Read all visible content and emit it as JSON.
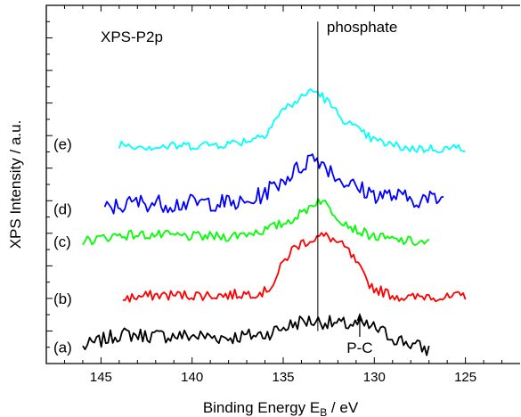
{
  "chart_data": {
    "type": "line",
    "xlabel": "Binding Energy E",
    "xlabel_sub": "B",
    "xlabel_unit": " / eV",
    "ylabel": "XPS Intensity / a.u.",
    "x_reversed": true,
    "xlim": [
      148,
      122
    ],
    "ylim": [
      0,
      11
    ],
    "x_ticks": [
      145,
      140,
      135,
      130,
      125
    ],
    "x_tick_labels": [
      "145",
      "140",
      "135",
      "130",
      "125"
    ],
    "y_ticks_hidden": true,
    "grid": false,
    "reference_line": {
      "x": 133.1,
      "label": "phosphate"
    },
    "annotations": [
      {
        "text": "XPS-P2p",
        "role": "panel-label"
      },
      {
        "text": "P-C",
        "x": 130.8,
        "role": "arrow-label"
      }
    ],
    "series": [
      {
        "label": "(a)",
        "color": "#000000",
        "x": [
          146,
          144,
          142,
          140,
          138,
          136,
          135,
          134,
          133,
          132,
          131,
          130,
          129,
          128,
          127
        ],
        "y": [
          0.5,
          0.9,
          0.85,
          0.85,
          0.8,
          0.9,
          1.1,
          1.3,
          1.3,
          1.2,
          1.2,
          1.1,
          0.8,
          0.6,
          0.4
        ]
      },
      {
        "label": "(b)",
        "color": "#ff0000",
        "x": [
          143.8,
          142,
          140,
          138,
          136,
          135.5,
          135,
          134.5,
          134,
          133.5,
          133,
          132.5,
          132,
          131.5,
          131,
          130.5,
          130,
          129,
          128,
          127,
          126,
          125
        ],
        "y": [
          2.0,
          2.1,
          2.1,
          2.1,
          2.2,
          2.5,
          3.1,
          3.5,
          3.7,
          3.8,
          3.9,
          3.9,
          3.7,
          3.5,
          3.1,
          2.6,
          2.3,
          2.1,
          2.0,
          2.1,
          2.0,
          2.1
        ]
      },
      {
        "label": "(c)",
        "color": "#00ff00",
        "x": [
          146,
          144,
          142,
          140,
          138,
          136,
          135,
          134,
          133.5,
          133,
          132.5,
          132,
          131,
          130,
          129,
          128,
          127
        ],
        "y": [
          3.75,
          3.95,
          3.95,
          3.9,
          3.9,
          4.1,
          4.3,
          4.6,
          4.85,
          5.05,
          4.8,
          4.5,
          4.1,
          3.9,
          3.8,
          3.75,
          3.7
        ]
      },
      {
        "label": "(d)",
        "color": "#0000ff",
        "x": [
          144.8,
          143,
          141,
          139,
          137,
          136,
          135,
          134,
          133.5,
          133,
          132.5,
          132,
          131,
          130,
          129,
          128,
          126.2
        ],
        "y": [
          4.75,
          4.95,
          4.9,
          4.95,
          4.9,
          5.25,
          5.65,
          6.05,
          6.35,
          6.25,
          6.0,
          5.7,
          5.4,
          5.2,
          5.15,
          5.05,
          5.05
        ]
      },
      {
        "label": "(e)",
        "color": "#00ffff",
        "x": [
          144,
          142,
          140,
          138,
          137,
          136,
          135.5,
          135,
          134,
          133.5,
          133,
          132.5,
          132,
          131,
          130,
          129,
          128,
          126,
          125
        ],
        "y": [
          6.75,
          6.65,
          6.7,
          6.75,
          6.85,
          7.05,
          7.45,
          7.8,
          8.15,
          8.4,
          8.3,
          8.0,
          7.65,
          7.2,
          6.85,
          6.7,
          6.6,
          6.6,
          6.65
        ]
      }
    ]
  }
}
